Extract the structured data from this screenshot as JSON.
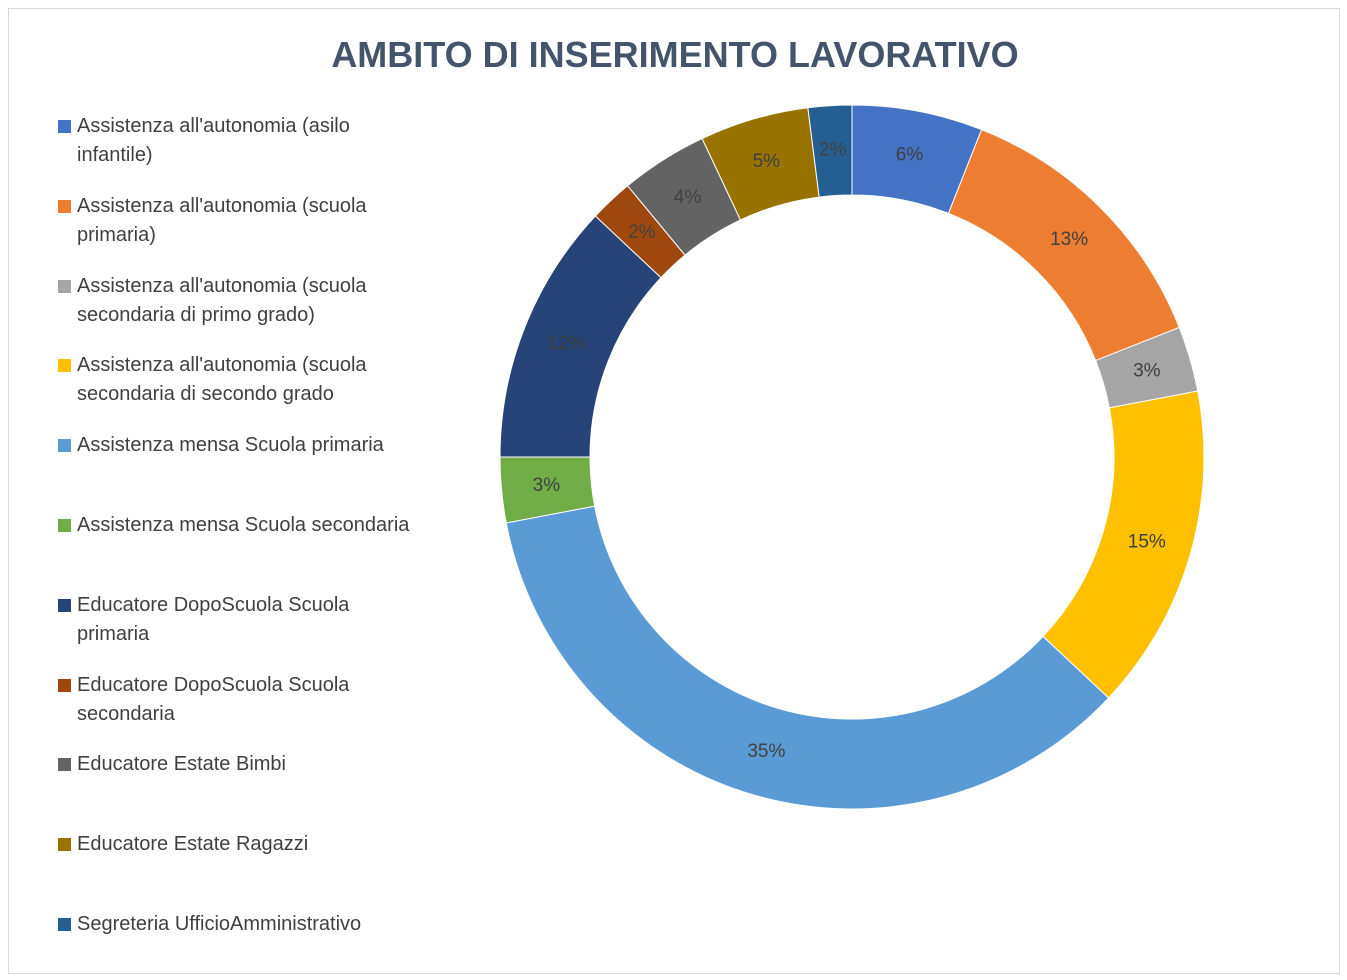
{
  "chart_data": {
    "type": "donut",
    "title": "AMBITO DI INSERIMENTO LAVORATIVO",
    "categories": [
      "Assistenza all'autonomia (asilo infantile)",
      "Assistenza all'autonomia (scuola primaria)",
      "Assistenza all'autonomia (scuola secondaria di primo grado)",
      "Assistenza all'autonomia (scuola secondaria di secondo grado",
      "Assistenza mensa Scuola primaria",
      "Assistenza mensa Scuola secondaria",
      "Educatore DopoScuola Scuola primaria",
      "Educatore DopoScuola Scuola secondaria",
      "Educatore Estate Bimbi",
      "Educatore Estate Ragazzi",
      "Segreteria UfficioAmministrativo"
    ],
    "values": [
      6,
      13,
      3,
      15,
      35,
      3,
      12,
      2,
      4,
      5,
      2
    ],
    "value_labels": [
      "6%",
      "13%",
      "3%",
      "15%",
      "35%",
      "3%",
      "12%",
      "2%",
      "4%",
      "5%",
      "2%"
    ],
    "colors": [
      "#4472c4",
      "#ed7d31",
      "#a5a5a5",
      "#ffc000",
      "#5b9bd5",
      "#70ad47",
      "#264478",
      "#9e480e",
      "#636363",
      "#997300",
      "#255e91"
    ],
    "legend": "left"
  }
}
